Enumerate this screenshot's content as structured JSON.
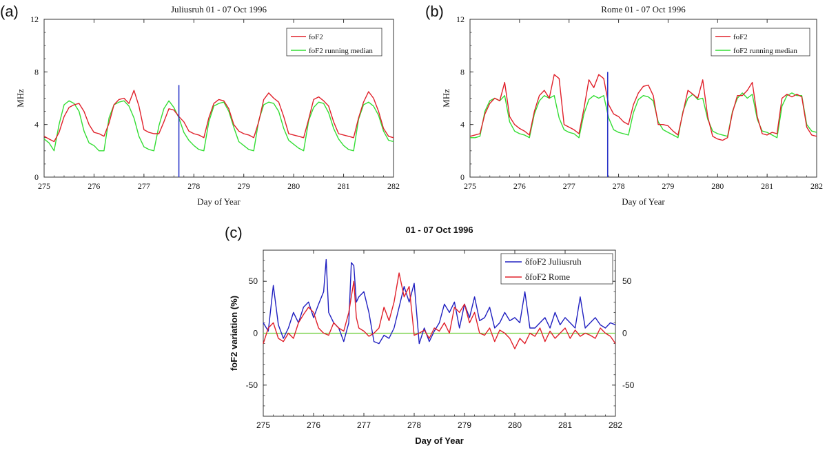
{
  "panels": {
    "a": {
      "letter": "(a)"
    },
    "b": {
      "letter": "(b)"
    },
    "c": {
      "letter": "(c)"
    }
  },
  "colors": {
    "fof2": "#e0202a",
    "median": "#33dd33",
    "marker": "#2b36c8",
    "julius": "#2020c0",
    "rome": "#e0202a",
    "zero": "#66cc33"
  },
  "chart_data": [
    {
      "id": "a",
      "type": "line",
      "title": "Juliusruh 01 - 07 Oct 1996",
      "xlabel": "Day of Year",
      "ylabel": "MHz",
      "xlim": [
        275,
        282
      ],
      "ylim": [
        0,
        12
      ],
      "xticks": [
        275,
        276,
        277,
        278,
        279,
        280,
        281,
        282
      ],
      "yticks": [
        0,
        4,
        8,
        12
      ],
      "legend_position": "top-right",
      "marker_x": 277.7,
      "marker_y": 7.0,
      "series": [
        {
          "name": "foF2",
          "color": "#e0202a",
          "x": [
            275.0,
            275.1,
            275.2,
            275.3,
            275.4,
            275.5,
            275.6,
            275.7,
            275.8,
            275.9,
            276.0,
            276.1,
            276.2,
            276.3,
            276.4,
            276.5,
            276.6,
            276.7,
            276.8,
            276.9,
            277.0,
            277.1,
            277.2,
            277.3,
            277.4,
            277.5,
            277.6,
            277.7,
            277.8,
            277.9,
            278.0,
            278.1,
            278.2,
            278.3,
            278.4,
            278.5,
            278.6,
            278.7,
            278.8,
            278.9,
            279.0,
            279.1,
            279.2,
            279.3,
            279.4,
            279.5,
            279.6,
            279.7,
            279.8,
            279.9,
            280.0,
            280.1,
            280.2,
            280.3,
            280.4,
            280.5,
            280.6,
            280.7,
            280.8,
            280.9,
            281.0,
            281.1,
            281.2,
            281.3,
            281.4,
            281.5,
            281.6,
            281.7,
            281.8,
            281.9,
            282.0
          ],
          "y": [
            3.1,
            2.9,
            2.7,
            3.4,
            4.6,
            5.3,
            5.5,
            5.6,
            5.0,
            4.0,
            3.4,
            3.3,
            3.1,
            4.1,
            5.5,
            5.9,
            6.0,
            5.6,
            6.6,
            5.4,
            3.6,
            3.4,
            3.3,
            3.3,
            4.2,
            5.2,
            5.1,
            4.6,
            4.2,
            3.5,
            3.3,
            3.2,
            3.0,
            4.5,
            5.6,
            5.9,
            5.8,
            5.2,
            4.0,
            3.5,
            3.3,
            3.2,
            3.0,
            4.2,
            5.9,
            6.4,
            6.0,
            5.7,
            4.6,
            3.3,
            3.2,
            3.1,
            3.0,
            4.4,
            5.9,
            6.1,
            5.8,
            5.4,
            4.2,
            3.3,
            3.2,
            3.1,
            3.0,
            4.5,
            5.7,
            6.5,
            6.0,
            5.0,
            3.7,
            3.1,
            3.0
          ]
        },
        {
          "name": "foF2 running median",
          "color": "#33dd33",
          "x": [
            275.0,
            275.1,
            275.2,
            275.3,
            275.4,
            275.5,
            275.6,
            275.7,
            275.8,
            275.9,
            276.0,
            276.1,
            276.2,
            276.3,
            276.4,
            276.5,
            276.6,
            276.7,
            276.8,
            276.9,
            277.0,
            277.1,
            277.2,
            277.3,
            277.4,
            277.5,
            277.6,
            277.7,
            277.8,
            277.9,
            278.0,
            278.1,
            278.2,
            278.3,
            278.4,
            278.5,
            278.6,
            278.7,
            278.8,
            278.9,
            279.0,
            279.1,
            279.2,
            279.3,
            279.4,
            279.5,
            279.6,
            279.7,
            279.8,
            279.9,
            280.0,
            280.1,
            280.2,
            280.3,
            280.4,
            280.5,
            280.6,
            280.7,
            280.8,
            280.9,
            281.0,
            281.1,
            281.2,
            281.3,
            281.4,
            281.5,
            281.6,
            281.7,
            281.8,
            281.9,
            282.0
          ],
          "y": [
            2.9,
            2.6,
            2.0,
            4.0,
            5.5,
            5.8,
            5.6,
            5.0,
            3.5,
            2.6,
            2.4,
            2.0,
            2.0,
            4.5,
            5.5,
            5.7,
            5.8,
            5.4,
            4.5,
            3.1,
            2.3,
            2.1,
            2.0,
            3.9,
            5.2,
            5.8,
            5.3,
            4.5,
            3.4,
            2.8,
            2.4,
            2.1,
            2.0,
            4.2,
            5.4,
            5.6,
            5.7,
            5.0,
            3.8,
            2.7,
            2.4,
            2.1,
            2.0,
            4.3,
            5.5,
            5.7,
            5.6,
            5.0,
            3.7,
            2.8,
            2.5,
            2.2,
            2.0,
            4.3,
            5.3,
            5.7,
            5.6,
            4.9,
            3.7,
            2.9,
            2.4,
            2.1,
            2.0,
            4.4,
            5.5,
            5.7,
            5.4,
            4.7,
            3.5,
            2.8,
            2.7
          ]
        }
      ]
    },
    {
      "id": "b",
      "type": "line",
      "title": "Rome 01 - 07 Oct 1996",
      "xlabel": "Day of Year",
      "ylabel": "MHz",
      "xlim": [
        275,
        282
      ],
      "ylim": [
        0,
        12
      ],
      "xticks": [
        275,
        276,
        277,
        278,
        279,
        280,
        281,
        282
      ],
      "yticks": [
        0,
        4,
        8,
        12
      ],
      "legend_position": "top-right",
      "marker_x": 277.78,
      "marker_y": 8.0,
      "series": [
        {
          "name": "foF2",
          "color": "#e0202a",
          "x": [
            275.0,
            275.1,
            275.2,
            275.3,
            275.4,
            275.5,
            275.6,
            275.7,
            275.8,
            275.9,
            276.0,
            276.1,
            276.2,
            276.3,
            276.4,
            276.5,
            276.6,
            276.7,
            276.8,
            276.9,
            277.0,
            277.1,
            277.2,
            277.3,
            277.4,
            277.5,
            277.6,
            277.7,
            277.8,
            277.9,
            278.0,
            278.1,
            278.2,
            278.3,
            278.4,
            278.5,
            278.6,
            278.7,
            278.8,
            278.9,
            279.0,
            279.1,
            279.2,
            279.3,
            279.4,
            279.5,
            279.6,
            279.7,
            279.8,
            279.9,
            280.0,
            280.1,
            280.2,
            280.3,
            280.4,
            280.5,
            280.6,
            280.7,
            280.8,
            280.9,
            281.0,
            281.1,
            281.2,
            281.3,
            281.4,
            281.5,
            281.6,
            281.7,
            281.8,
            281.9,
            282.0
          ],
          "y": [
            3.1,
            3.2,
            3.3,
            4.8,
            5.6,
            6.0,
            5.8,
            7.2,
            4.6,
            4.0,
            3.7,
            3.5,
            3.2,
            5.0,
            6.2,
            6.6,
            6.0,
            7.8,
            7.5,
            4.0,
            3.8,
            3.6,
            3.3,
            5.2,
            7.4,
            6.8,
            7.8,
            7.5,
            5.5,
            4.8,
            4.6,
            4.2,
            4.0,
            5.5,
            6.4,
            6.9,
            7.0,
            6.2,
            4.0,
            4.0,
            3.9,
            3.5,
            3.2,
            4.9,
            6.6,
            6.3,
            6.0,
            7.4,
            4.6,
            3.1,
            2.9,
            2.8,
            3.0,
            4.9,
            6.2,
            6.2,
            6.6,
            7.2,
            4.6,
            3.3,
            3.2,
            3.4,
            3.3,
            6.0,
            6.3,
            6.1,
            6.3,
            6.1,
            3.8,
            3.2,
            3.1
          ]
        },
        {
          "name": "foF2 running median",
          "color": "#33dd33",
          "x": [
            275.0,
            275.1,
            275.2,
            275.3,
            275.4,
            275.5,
            275.6,
            275.7,
            275.8,
            275.9,
            276.0,
            276.1,
            276.2,
            276.3,
            276.4,
            276.5,
            276.6,
            276.7,
            276.8,
            276.9,
            277.0,
            277.1,
            277.2,
            277.3,
            277.4,
            277.5,
            277.6,
            277.7,
            277.8,
            277.9,
            278.0,
            278.1,
            278.2,
            278.3,
            278.4,
            278.5,
            278.6,
            278.7,
            278.8,
            278.9,
            279.0,
            279.1,
            279.2,
            279.3,
            279.4,
            279.5,
            279.6,
            279.7,
            279.8,
            279.9,
            280.0,
            280.1,
            280.2,
            280.3,
            280.4,
            280.5,
            280.6,
            280.7,
            280.8,
            280.9,
            281.0,
            281.1,
            281.2,
            281.3,
            281.4,
            281.5,
            281.6,
            281.7,
            281.8,
            281.9,
            282.0
          ],
          "y": [
            3.0,
            3.0,
            3.1,
            5.0,
            5.8,
            6.0,
            5.8,
            6.2,
            4.2,
            3.5,
            3.3,
            3.2,
            3.0,
            4.8,
            5.8,
            6.2,
            6.0,
            6.2,
            4.5,
            3.6,
            3.4,
            3.3,
            3.0,
            4.8,
            5.9,
            6.2,
            6.0,
            6.2,
            4.5,
            3.6,
            3.4,
            3.3,
            3.2,
            4.9,
            5.9,
            6.2,
            6.1,
            5.8,
            4.2,
            3.6,
            3.4,
            3.2,
            3.0,
            5.0,
            6.0,
            6.3,
            5.9,
            6.0,
            4.4,
            3.5,
            3.3,
            3.2,
            3.1,
            5.0,
            6.0,
            6.4,
            6.0,
            6.3,
            4.4,
            3.5,
            3.4,
            3.2,
            3.0,
            5.4,
            6.2,
            6.4,
            6.2,
            6.2,
            4.0,
            3.5,
            3.4
          ]
        }
      ]
    },
    {
      "id": "c",
      "type": "line",
      "title": "01 - 07 Oct 1996",
      "xlabel": "Day of Year",
      "ylabel": "foF2 variation (%)",
      "xlim": [
        275,
        282
      ],
      "ylim": [
        -80,
        80
      ],
      "xticks": [
        275,
        276,
        277,
        278,
        279,
        280,
        281,
        282
      ],
      "yticks": [
        -50,
        0,
        50
      ],
      "right_axis": true,
      "zero_line": true,
      "legend_position": "top-right",
      "series": [
        {
          "name": "δfoF2 Juliusruh",
          "color": "#2020c0",
          "x": [
            275.0,
            275.1,
            275.2,
            275.3,
            275.4,
            275.5,
            275.6,
            275.7,
            275.8,
            275.9,
            276.0,
            276.1,
            276.2,
            276.25,
            276.3,
            276.4,
            276.5,
            276.6,
            276.7,
            276.75,
            276.8,
            276.85,
            276.9,
            277.0,
            277.1,
            277.2,
            277.3,
            277.4,
            277.5,
            277.6,
            277.7,
            277.8,
            277.9,
            278.0,
            278.1,
            278.2,
            278.3,
            278.4,
            278.5,
            278.6,
            278.7,
            278.8,
            278.9,
            279.0,
            279.1,
            279.2,
            279.3,
            279.4,
            279.5,
            279.6,
            279.7,
            279.8,
            279.9,
            280.0,
            280.1,
            280.2,
            280.3,
            280.4,
            280.5,
            280.6,
            280.7,
            280.8,
            280.9,
            281.0,
            281.1,
            281.2,
            281.3,
            281.4,
            281.5,
            281.6,
            281.7,
            281.8,
            281.9,
            282.0
          ],
          "y": [
            10,
            2,
            46,
            8,
            -5,
            5,
            20,
            10,
            25,
            30,
            15,
            28,
            40,
            71,
            20,
            10,
            5,
            -8,
            10,
            68,
            65,
            30,
            35,
            40,
            20,
            -8,
            -10,
            -2,
            -5,
            5,
            25,
            45,
            30,
            48,
            -10,
            5,
            -8,
            2,
            10,
            28,
            20,
            30,
            5,
            28,
            15,
            35,
            12,
            15,
            25,
            5,
            10,
            20,
            12,
            15,
            10,
            40,
            5,
            5,
            10,
            15,
            5,
            20,
            8,
            15,
            10,
            5,
            35,
            5,
            10,
            15,
            8,
            5,
            10,
            8
          ]
        },
        {
          "name": "δfoF2 Rome",
          "color": "#e0202a",
          "x": [
            275.0,
            275.1,
            275.2,
            275.3,
            275.4,
            275.5,
            275.6,
            275.7,
            275.8,
            275.9,
            276.0,
            276.1,
            276.2,
            276.3,
            276.4,
            276.5,
            276.6,
            276.7,
            276.8,
            276.85,
            276.9,
            277.0,
            277.1,
            277.2,
            277.3,
            277.4,
            277.5,
            277.6,
            277.7,
            277.8,
            277.9,
            278.0,
            278.1,
            278.2,
            278.3,
            278.4,
            278.5,
            278.6,
            278.7,
            278.8,
            278.9,
            279.0,
            279.1,
            279.2,
            279.3,
            279.4,
            279.5,
            279.6,
            279.7,
            279.8,
            279.9,
            280.0,
            280.1,
            280.2,
            280.3,
            280.4,
            280.5,
            280.6,
            280.7,
            280.8,
            280.9,
            281.0,
            281.1,
            281.2,
            281.3,
            281.4,
            281.5,
            281.6,
            281.7,
            281.8,
            281.9,
            282.0
          ],
          "y": [
            -10,
            5,
            10,
            -5,
            -8,
            0,
            -5,
            10,
            18,
            25,
            20,
            5,
            0,
            -2,
            10,
            5,
            2,
            20,
            50,
            15,
            5,
            2,
            -3,
            0,
            5,
            25,
            12,
            30,
            58,
            35,
            45,
            -2,
            0,
            3,
            -5,
            5,
            2,
            10,
            0,
            25,
            20,
            28,
            10,
            20,
            0,
            -2,
            5,
            -8,
            3,
            0,
            -5,
            -15,
            -5,
            -10,
            0,
            -3,
            5,
            -8,
            2,
            -5,
            0,
            5,
            -5,
            3,
            -3,
            0,
            -2,
            -5,
            5,
            0,
            -3,
            -10
          ]
        }
      ]
    }
  ]
}
